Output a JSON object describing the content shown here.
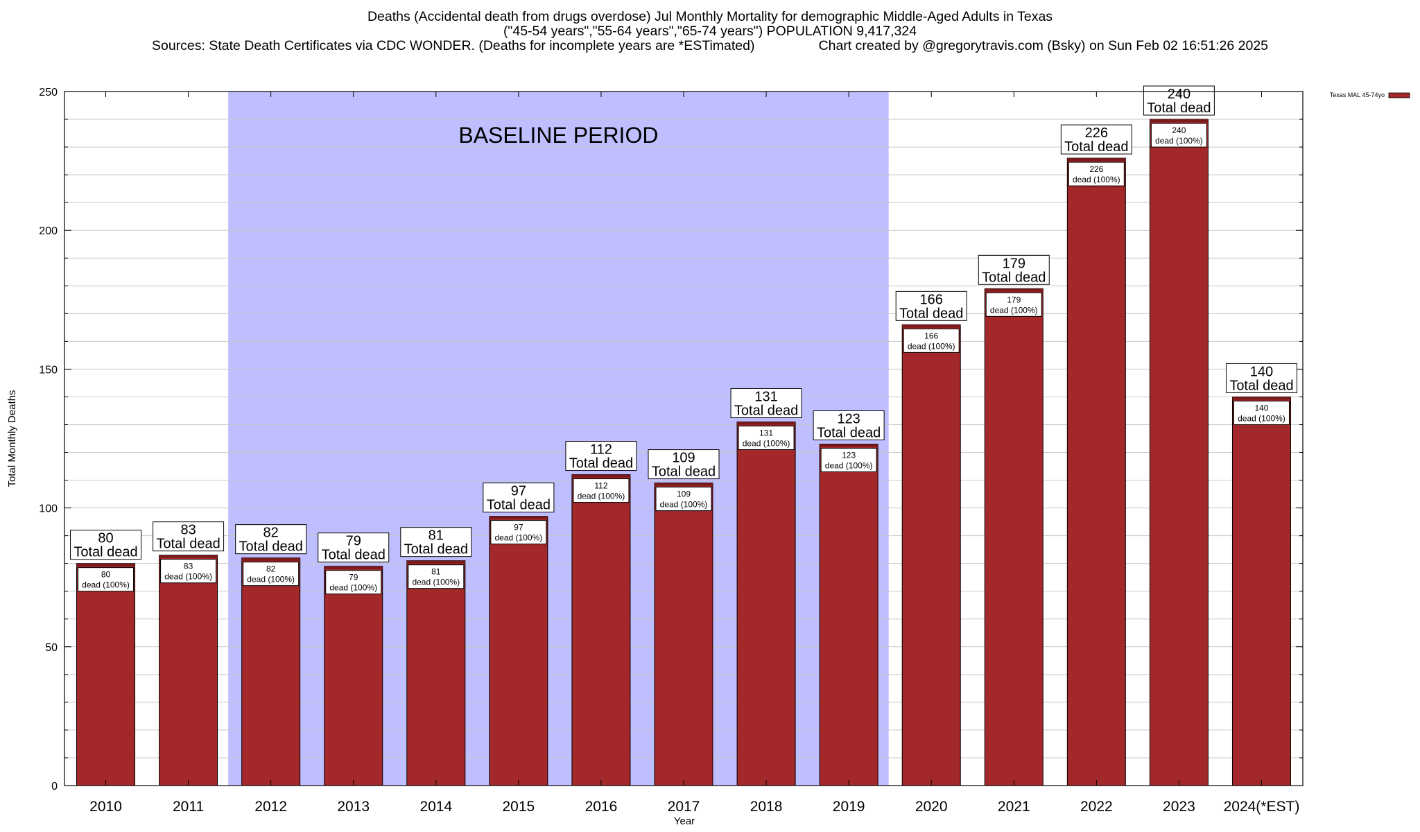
{
  "header": {
    "title_line1": "Deaths (Accidental death from drugs overdose) Jul Monthly Mortality for demographic Middle-Aged Adults in Texas",
    "title_line2": "(\"45-54 years\",\"55-64 years\",\"65-74 years\") POPULATION 9,417,324",
    "title_line3": "Sources: State Death Certificates via CDC WONDER. (Deaths for incomplete years are *ESTimated)                 Chart created by @gregorytravis.com (Bsky) on Sun Feb 02 16:51:26 2025"
  },
  "chart_data": {
    "type": "bar",
    "title": "Deaths (Accidental death from drugs overdose) Jul Monthly Mortality for demographic Middle-Aged Adults in Texas",
    "xlabel": "Year",
    "ylabel": "Total Monthly Deaths",
    "ylim": [
      0,
      250
    ],
    "yticks": [
      0,
      50,
      100,
      150,
      200,
      250
    ],
    "grid": true,
    "legend": {
      "position": "top-right",
      "label": "Texas MAL 45-74yo",
      "color": "#a3282a"
    },
    "categories": [
      "2010",
      "2011",
      "2012",
      "2013",
      "2014",
      "2015",
      "2016",
      "2017",
      "2018",
      "2019",
      "2020",
      "2021",
      "2022",
      "2023",
      "2024(*EST)"
    ],
    "series": [
      {
        "name": "Texas MAL 45-74yo",
        "values": [
          80,
          83,
          82,
          79,
          81,
          97,
          112,
          109,
          131,
          123,
          166,
          179,
          226,
          240,
          140
        ]
      }
    ],
    "top_label_suffix": "Total dead",
    "inner_label_suffix": "dead (100%)",
    "baseline": {
      "label": "BASELINE PERIOD",
      "start": "2012",
      "end": "2019",
      "color": "#bfbfff"
    },
    "bar_color": "#a3282a",
    "bar_top_color": "#7a1a1c"
  }
}
